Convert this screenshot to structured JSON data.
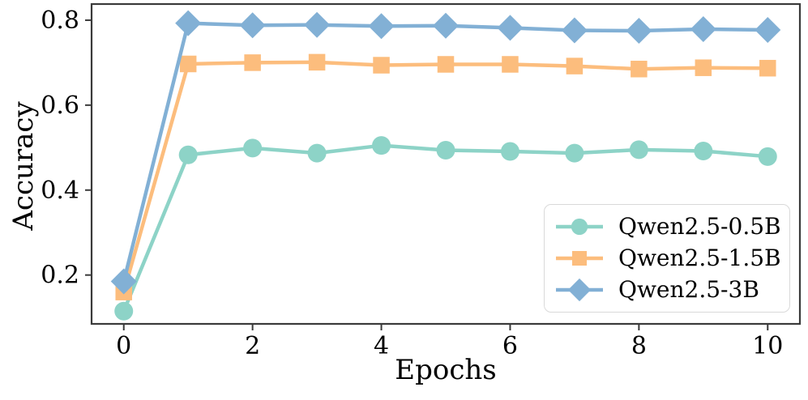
{
  "chart_data": {
    "type": "line",
    "title": "",
    "xlabel": "Epochs",
    "ylabel": "Accuracy",
    "x": [
      0,
      1,
      2,
      3,
      4,
      5,
      6,
      7,
      8,
      9,
      10
    ],
    "x_ticks": [
      0,
      2,
      4,
      6,
      8,
      10
    ],
    "y_ticks": [
      0.2,
      0.4,
      0.6,
      0.8
    ],
    "xlim": [
      -0.5,
      10.5
    ],
    "ylim": [
      0.085,
      0.838
    ],
    "grid": false,
    "legend_position": "lower right",
    "axis_color": "#3a3a3a",
    "text_color": "#000000",
    "series": [
      {
        "name": "Qwen2.5-0.5B",
        "color": "#8dd3c7",
        "marker": "circle",
        "values": [
          0.115,
          0.483,
          0.499,
          0.487,
          0.505,
          0.494,
          0.491,
          0.487,
          0.495,
          0.492,
          0.479
        ]
      },
      {
        "name": "Qwen2.5-1.5B",
        "color": "#fcbd7d",
        "marker": "square",
        "values": [
          0.16,
          0.697,
          0.7,
          0.701,
          0.694,
          0.696,
          0.696,
          0.692,
          0.685,
          0.688,
          0.687
        ]
      },
      {
        "name": "Qwen2.5-3B",
        "color": "#82b0d5",
        "marker": "diamond",
        "values": [
          0.185,
          0.793,
          0.788,
          0.789,
          0.786,
          0.787,
          0.782,
          0.776,
          0.775,
          0.779,
          0.777
        ]
      }
    ]
  }
}
